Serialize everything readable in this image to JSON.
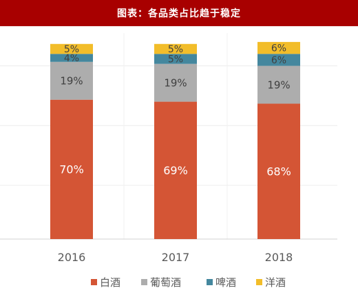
{
  "title": "图表：各品类占比趋于稳定",
  "colors": {
    "title_bg": "#a80000",
    "baijiu": "#d45535",
    "grape_wine": "#adadad",
    "beer": "#44879e",
    "foreign_liquor": "#f2bd2a"
  },
  "chart_data": {
    "type": "bar",
    "stacked": true,
    "percent_stacked": true,
    "categories": [
      "2016",
      "2017",
      "2018"
    ],
    "series": [
      {
        "name": "白酒",
        "values": [
          70,
          69,
          68
        ],
        "labels": [
          "70%",
          "69%",
          "68%"
        ],
        "color": "#d45535"
      },
      {
        "name": "葡萄酒",
        "values": [
          19,
          19,
          19
        ],
        "labels": [
          "19%",
          "19%",
          "19%"
        ],
        "color": "#adadad"
      },
      {
        "name": "啤酒",
        "values": [
          4,
          5,
          6
        ],
        "labels": [
          "4%",
          "5%",
          "6%"
        ],
        "color": "#44879e"
      },
      {
        "name": "洋酒",
        "values": [
          5,
          5,
          6
        ],
        "labels": [
          "5%",
          "5%",
          "6%"
        ],
        "color": "#f2bd2a"
      }
    ],
    "ylim": [
      0,
      100
    ],
    "grid": true,
    "legend": "bottom"
  }
}
